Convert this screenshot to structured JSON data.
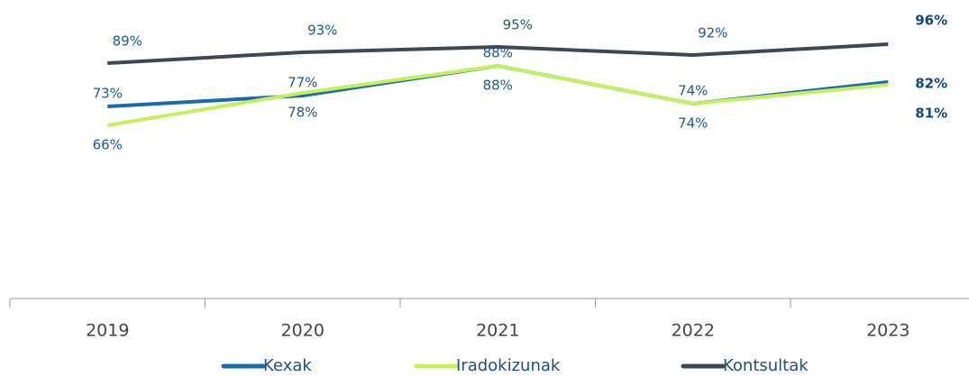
{
  "chart_data": {
    "type": "line",
    "categories": [
      "2019",
      "2020",
      "2021",
      "2022",
      "2023"
    ],
    "ylim": [
      0,
      100
    ],
    "series": [
      {
        "name": "Kexak",
        "color": "#1a6aae",
        "values": [
          73,
          77,
          88,
          74,
          82
        ],
        "value_labels": [
          "73%",
          "77%",
          "88%",
          "74%",
          "82%"
        ]
      },
      {
        "name": "Iradokizunak",
        "color": "#c4f060",
        "values": [
          66,
          78,
          88,
          74,
          81
        ],
        "value_labels": [
          "66%",
          "78%",
          "88%",
          "74%",
          "81%"
        ]
      },
      {
        "name": "Kontsultak",
        "color": "#3f4752",
        "values": [
          89,
          93,
          95,
          92,
          96
        ],
        "value_labels": [
          "89%",
          "93%",
          "95%",
          "92%",
          "96%"
        ]
      }
    ]
  }
}
